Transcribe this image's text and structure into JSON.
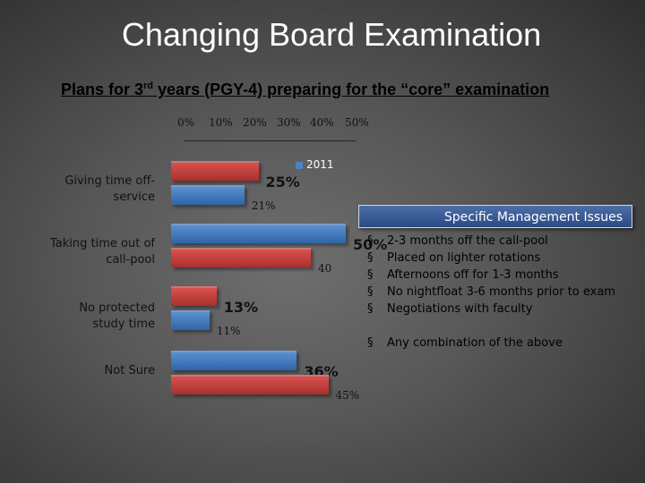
{
  "title": "Changing Board Examination",
  "subtitle": {
    "pre": "Plans for 3",
    "sup": "rd",
    "post": " years (PGY-4) preparing for the “core” examination"
  },
  "chart_data": {
    "type": "bar",
    "orientation": "horizontal",
    "categories": [
      "Giving time off-service",
      "Taking time out of call-pool",
      "No protected study time",
      "Not Sure"
    ],
    "series": [
      {
        "name": "2011",
        "color": "#4f81bd",
        "values": [
          21,
          50,
          11,
          36
        ],
        "labels": [
          "21%",
          "50%",
          "11%",
          "36%"
        ]
      },
      {
        "color": "#c0504d",
        "values": [
          25,
          40,
          13,
          45
        ],
        "labels": [
          "25%",
          "40",
          "13%",
          "45%"
        ]
      }
    ],
    "xticks": [
      "0%",
      "10%",
      "20%",
      "30%",
      "40%",
      "50%"
    ],
    "xlim": [
      0,
      50
    ],
    "legend": "top-right"
  },
  "management": {
    "title": "Specific Management Issues",
    "bullet": "§",
    "items": [
      "2-3 months off the call-pool",
      "Placed on lighter rotations",
      "Afternoons off for 1-3 months",
      "No nightfloat 3-6 months prior to exam",
      "Negotiations with faculty"
    ],
    "extra": "Any combination of the above"
  }
}
